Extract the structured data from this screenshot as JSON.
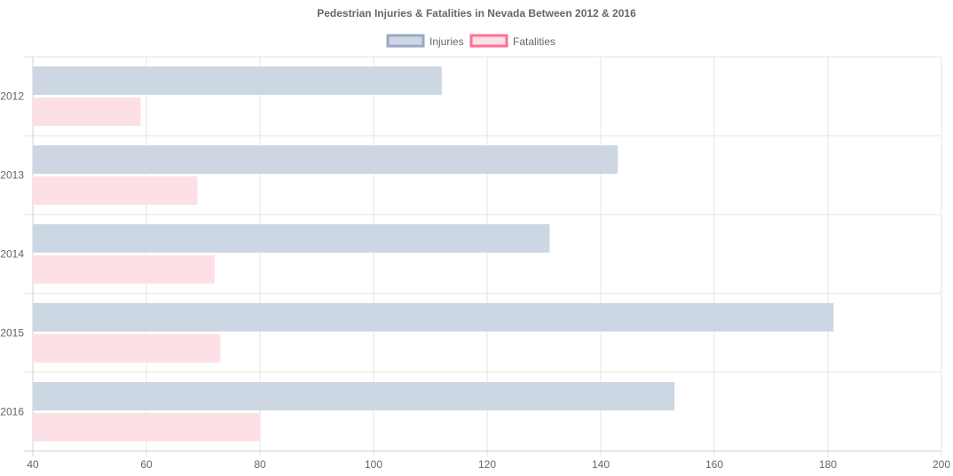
{
  "chart_data": {
    "type": "bar",
    "orientation": "horizontal",
    "title": "Pedestrian Injuries & Fatalities in Nevada Between 2012 & 2016",
    "categories": [
      "2012",
      "2013",
      "2014",
      "2015",
      "2016"
    ],
    "series": [
      {
        "name": "Injuries",
        "values": [
          112,
          143,
          131,
          181,
          153
        ],
        "fill": "#ccd7e3",
        "stroke": "#9aa8c4"
      },
      {
        "name": "Fatalities",
        "values": [
          59,
          69,
          72,
          73,
          80
        ],
        "fill": "#fde0e6",
        "stroke": "#ff6f91"
      }
    ],
    "xlim": [
      40,
      200
    ],
    "xticks": [
      "40",
      "60",
      "80",
      "100",
      "120",
      "140",
      "160",
      "180",
      "200"
    ],
    "xlabel": "",
    "ylabel": "",
    "grid": true,
    "legend": "top-center"
  }
}
